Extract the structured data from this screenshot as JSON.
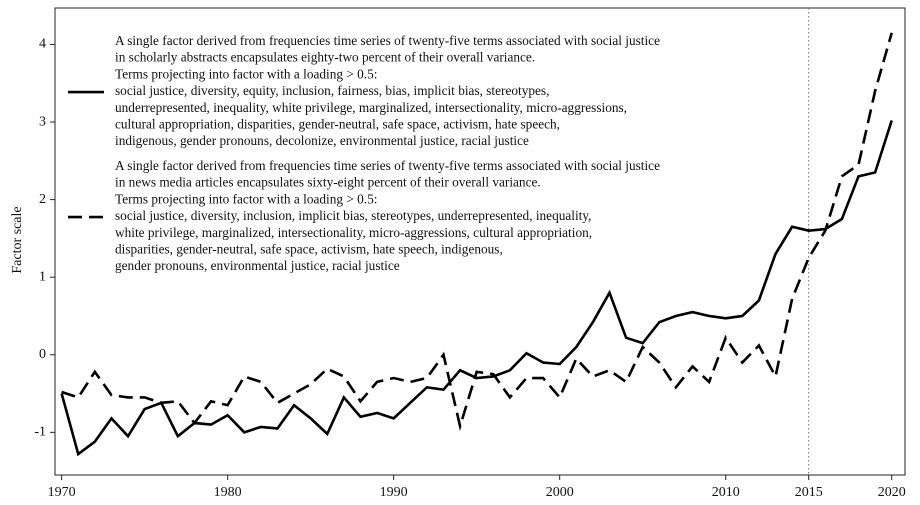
{
  "chart_data": {
    "type": "line",
    "y_label": "Factor scale",
    "x": [
      1970,
      1971,
      1972,
      1973,
      1974,
      1975,
      1976,
      1977,
      1978,
      1979,
      1980,
      1981,
      1982,
      1983,
      1984,
      1985,
      1986,
      1987,
      1988,
      1989,
      1990,
      1991,
      1992,
      1993,
      1994,
      1995,
      1996,
      1997,
      1998,
      1999,
      2000,
      2001,
      2002,
      2003,
      2004,
      2005,
      2006,
      2007,
      2008,
      2009,
      2010,
      2011,
      2012,
      2013,
      2014,
      2015,
      2016,
      2017,
      2018,
      2019,
      2020
    ],
    "series": [
      {
        "name": [
          "A single factor derived from frequencies time series of twenty-five terms associated with social justice",
          "in scholarly abstracts encapsulates eighty-two percent of their overall variance.",
          "Terms projecting into factor with a loading > 0.5:",
          "social justice, diversity, equity, inclusion, fairness, bias, implicit bias, stereotypes,",
          "underrepresented, inequality, white privilege, marginalized, intersectionality, micro-aggressions,",
          "cultural appropriation, disparities, gender-neutral, safe space, activism, hate speech,",
          "indigenous, gender pronouns, decolonize, environmental justice, racial justice"
        ],
        "color": "#000000",
        "dash": "solid",
        "values": [
          -0.5,
          -1.28,
          -1.12,
          -0.82,
          -1.05,
          -0.7,
          -0.62,
          -1.05,
          -0.88,
          -0.9,
          -0.78,
          -1.0,
          -0.93,
          -0.95,
          -0.65,
          -0.82,
          -1.02,
          -0.55,
          -0.8,
          -0.75,
          -0.82,
          -0.62,
          -0.42,
          -0.45,
          -0.2,
          -0.3,
          -0.28,
          -0.2,
          0.02,
          -0.1,
          -0.12,
          0.1,
          0.42,
          0.8,
          0.22,
          0.15,
          0.42,
          0.5,
          0.55,
          0.5,
          0.47,
          0.5,
          0.7,
          1.3,
          1.65,
          1.6,
          1.62,
          1.75,
          2.3,
          2.35,
          3.02
        ]
      },
      {
        "name": [
          "A single factor derived from frequencies time series of twenty-five terms associated with social justice",
          "in news media articles encapsulates sixty-eight percent of their overall variance.",
          "Terms projecting into factor with a loading > 0.5:",
          "social justice, diversity, inclusion, implicit bias, stereotypes, underrepresented, inequality,",
          "white privilege, marginalized, intersectionality, micro-aggressions, cultural appropriation,",
          "disparities, gender-neutral, safe space, activism, hate speech, indigenous,",
          "gender pronouns, environmental justice, racial justice"
        ],
        "color": "#000000",
        "dash": "dashed",
        "values": [
          -0.48,
          -0.55,
          -0.22,
          -0.52,
          -0.55,
          -0.55,
          -0.62,
          -0.6,
          -0.88,
          -0.6,
          -0.65,
          -0.28,
          -0.35,
          -0.62,
          -0.5,
          -0.38,
          -0.18,
          -0.28,
          -0.6,
          -0.35,
          -0.3,
          -0.35,
          -0.3,
          0,
          -0.92,
          -0.22,
          -0.25,
          -0.55,
          -0.3,
          -0.3,
          -0.55,
          -0.05,
          -0.28,
          -0.2,
          -0.35,
          0.1,
          -0.1,
          -0.42,
          -0.15,
          -0.35,
          0.22,
          -0.1,
          0.12,
          -0.28,
          0.72,
          1.25,
          1.6,
          2.3,
          2.45,
          3.4,
          4.15
        ]
      }
    ],
    "xlim": [
      1969.6,
      2020.8
    ],
    "ylim": [
      -1.55,
      4.47
    ],
    "xticks": [
      1970,
      1980,
      1990,
      2000,
      2010,
      2015,
      2020
    ],
    "yticks": [
      -1,
      0,
      1,
      2,
      3,
      4
    ],
    "vline": 2015,
    "grid": false
  }
}
